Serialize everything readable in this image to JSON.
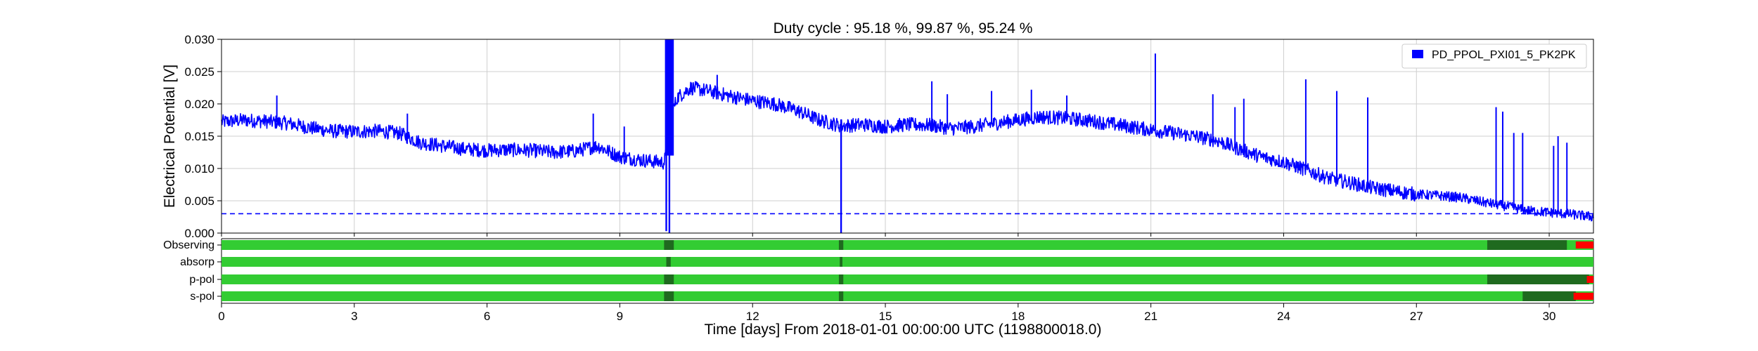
{
  "colors": {
    "series": "#0000ff",
    "threshold": "#0000ff",
    "active": "#33cc33",
    "known": "#1f6a1f",
    "flag": "#ff0000",
    "grid": "#cfcfcf",
    "axis": "#000000"
  },
  "chart_data": {
    "type": "line",
    "title": "Duty cycle : 95.18 %, 99.87 %, 95.24 %",
    "xlabel": "Time [days] From 2018-01-01 00:00:00 UTC (1198800018.0)",
    "ylabel": "Electrical Potential [V]",
    "xlim": [
      0,
      31
    ],
    "ylim": [
      0,
      0.03
    ],
    "grid": true,
    "legend_placement": "top-right",
    "x_ticks": [
      "0",
      "3",
      "6",
      "9",
      "12",
      "15",
      "18",
      "21",
      "24",
      "27",
      "30"
    ],
    "y_ticks": [
      "0.000",
      "0.005",
      "0.010",
      "0.015",
      "0.020",
      "0.025",
      "0.030"
    ],
    "threshold": {
      "value": 0.003,
      "style": "dashed"
    },
    "series": [
      {
        "name": "PD_PPOL_PXI01_5_PK2PK",
        "x": [
          0,
          0.5,
          1,
          1.5,
          2,
          2.5,
          3,
          3.5,
          4,
          4.5,
          5,
          5.5,
          6,
          6.5,
          7,
          7.5,
          8,
          8.5,
          9,
          9.5,
          10,
          10.05,
          10.15,
          10.3,
          10.6,
          11,
          11.5,
          12,
          12.5,
          13,
          13.5,
          14,
          14.5,
          15,
          15.5,
          16,
          16.5,
          17,
          17.5,
          18,
          18.5,
          19,
          19.5,
          20,
          20.5,
          21,
          21.5,
          22,
          22.5,
          23,
          23.5,
          24,
          24.5,
          25,
          25.5,
          26,
          26.5,
          27,
          27.5,
          28,
          28.5,
          29,
          29.5,
          30,
          30.5,
          31
        ],
        "y": [
          0.0172,
          0.0175,
          0.0173,
          0.017,
          0.0163,
          0.0158,
          0.0157,
          0.0158,
          0.0155,
          0.014,
          0.0135,
          0.013,
          0.0128,
          0.0129,
          0.0128,
          0.0125,
          0.0127,
          0.0135,
          0.0118,
          0.0113,
          0.0109,
          0.0125,
          0.018,
          0.021,
          0.0225,
          0.022,
          0.0212,
          0.0205,
          0.02,
          0.019,
          0.0175,
          0.0166,
          0.0168,
          0.0165,
          0.0168,
          0.0167,
          0.0162,
          0.0165,
          0.017,
          0.0175,
          0.018,
          0.0178,
          0.0175,
          0.017,
          0.0165,
          0.016,
          0.0155,
          0.015,
          0.0143,
          0.013,
          0.0118,
          0.011,
          0.0098,
          0.0085,
          0.0078,
          0.007,
          0.0065,
          0.006,
          0.0058,
          0.0055,
          0.0048,
          0.0042,
          0.0035,
          0.0032,
          0.0029,
          0.0025
        ],
        "dropouts": [
          {
            "x": 10.05,
            "y": 0.0003
          },
          {
            "x": 10.12,
            "y": 0.0
          },
          {
            "x": 14.0,
            "y": 0.0
          }
        ],
        "spikes": [
          {
            "x": 10.08,
            "y": 0.03
          },
          {
            "x": 10.18,
            "y": 0.03
          },
          {
            "x": 11.2,
            "y": 0.0245
          },
          {
            "x": 1.25,
            "y": 0.0213
          },
          {
            "x": 4.2,
            "y": 0.0185
          },
          {
            "x": 8.4,
            "y": 0.0185
          },
          {
            "x": 9.1,
            "y": 0.0165
          },
          {
            "x": 16.05,
            "y": 0.0235
          },
          {
            "x": 16.4,
            "y": 0.0215
          },
          {
            "x": 17.4,
            "y": 0.022
          },
          {
            "x": 18.3,
            "y": 0.0222
          },
          {
            "x": 19.1,
            "y": 0.0213
          },
          {
            "x": 21.1,
            "y": 0.0278
          },
          {
            "x": 22.4,
            "y": 0.0215
          },
          {
            "x": 22.9,
            "y": 0.0195
          },
          {
            "x": 23.1,
            "y": 0.0208
          },
          {
            "x": 24.5,
            "y": 0.0238
          },
          {
            "x": 25.2,
            "y": 0.022
          },
          {
            "x": 25.9,
            "y": 0.021
          },
          {
            "x": 28.8,
            "y": 0.0195
          },
          {
            "x": 28.95,
            "y": 0.0188
          },
          {
            "x": 29.2,
            "y": 0.0155
          },
          {
            "x": 29.4,
            "y": 0.0155
          },
          {
            "x": 30.1,
            "y": 0.0135
          },
          {
            "x": 30.2,
            "y": 0.015
          },
          {
            "x": 30.4,
            "y": 0.014
          }
        ]
      }
    ],
    "segment_rows": [
      {
        "label": "Observing",
        "active": [
          [
            0,
            31
          ]
        ],
        "known": [
          [
            10.0,
            10.22
          ],
          [
            13.95,
            14.05
          ],
          [
            28.6,
            30.4
          ]
        ],
        "flags": [
          [
            30.6,
            31
          ]
        ]
      },
      {
        "label": "absorp",
        "active": [
          [
            0,
            31
          ]
        ],
        "known": [
          [
            10.05,
            10.15
          ],
          [
            13.97,
            14.03
          ]
        ],
        "flags": []
      },
      {
        "label": "p-pol",
        "active": [
          [
            0,
            31
          ]
        ],
        "known": [
          [
            10.0,
            10.22
          ],
          [
            13.95,
            14.05
          ],
          [
            28.6,
            30.9
          ]
        ],
        "flags": [
          [
            30.85,
            31
          ]
        ]
      },
      {
        "label": "s-pol",
        "active": [
          [
            0,
            31
          ]
        ],
        "known": [
          [
            10.0,
            10.22
          ],
          [
            13.95,
            14.05
          ],
          [
            29.4,
            30.6
          ]
        ],
        "flags": [
          [
            30.55,
            31
          ]
        ]
      }
    ]
  }
}
